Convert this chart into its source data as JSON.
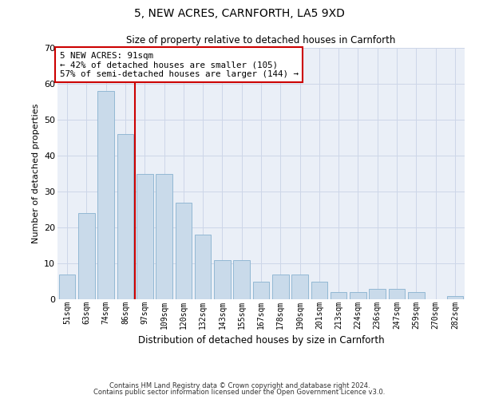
{
  "title1": "5, NEW ACRES, CARNFORTH, LA5 9XD",
  "title2": "Size of property relative to detached houses in Carnforth",
  "xlabel": "Distribution of detached houses by size in Carnforth",
  "ylabel": "Number of detached properties",
  "categories": [
    "51sqm",
    "63sqm",
    "74sqm",
    "86sqm",
    "97sqm",
    "109sqm",
    "120sqm",
    "132sqm",
    "143sqm",
    "155sqm",
    "167sqm",
    "178sqm",
    "190sqm",
    "201sqm",
    "213sqm",
    "224sqm",
    "236sqm",
    "247sqm",
    "259sqm",
    "270sqm",
    "282sqm"
  ],
  "values": [
    7,
    24,
    58,
    46,
    35,
    35,
    27,
    18,
    11,
    11,
    5,
    7,
    7,
    5,
    2,
    2,
    3,
    3,
    2,
    0,
    1
  ],
  "bar_color": "#c9daea",
  "bar_edge_color": "#92b8d4",
  "vline_color": "#cc0000",
  "vline_index": 3.5,
  "annotation_text": "5 NEW ACRES: 91sqm\n← 42% of detached houses are smaller (105)\n57% of semi-detached houses are larger (144) →",
  "annotation_box_edge_color": "#cc0000",
  "ylim": [
    0,
    70
  ],
  "yticks": [
    0,
    10,
    20,
    30,
    40,
    50,
    60,
    70
  ],
  "grid_color": "#cdd6e8",
  "bg_color": "#eaeff7",
  "footer1": "Contains HM Land Registry data © Crown copyright and database right 2024.",
  "footer2": "Contains public sector information licensed under the Open Government Licence v3.0."
}
